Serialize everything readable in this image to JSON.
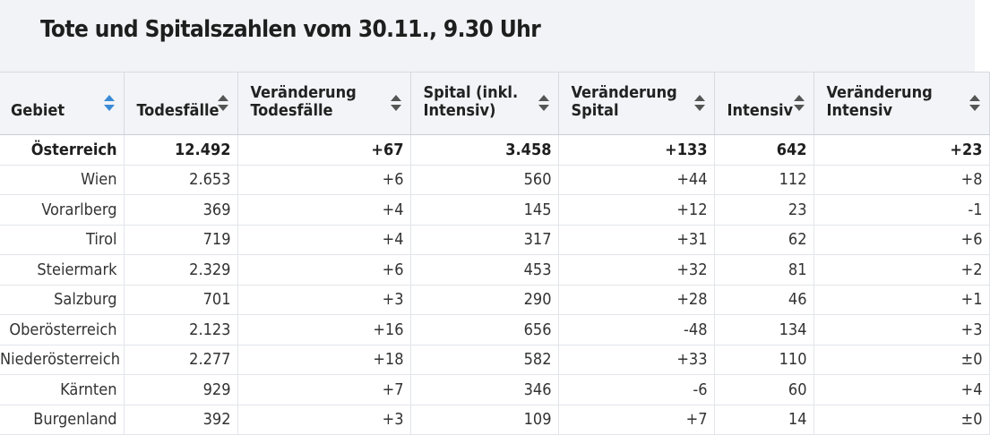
{
  "title": "Tote und Spitalszahlen vom 30.11., 9.30 Uhr",
  "columns": [
    {
      "line1": "Gebiet",
      "line2": ""
    },
    {
      "line1": "Todesfälle",
      "line2": ""
    },
    {
      "line1": "Veränderung",
      "line2": "Todesfälle"
    },
    {
      "line1": "Spital (inkl.",
      "line2": "Intensiv)"
    },
    {
      "line1": "Veränderung",
      "line2": "Spital"
    },
    {
      "line1": "Intensiv",
      "line2": ""
    },
    {
      "line1": "Veränderung",
      "line2": "Intensiv"
    }
  ],
  "sorted_column": "Gebiet",
  "rows": [
    [
      "Österreich",
      "12.492",
      "+67",
      "3.458",
      "+133",
      "642",
      "+23"
    ],
    [
      "Wien",
      "2.653",
      "+6",
      "560",
      "+44",
      "112",
      "+8"
    ],
    [
      "Vorarlberg",
      "369",
      "+4",
      "145",
      "+12",
      "23",
      "-1"
    ],
    [
      "Tirol",
      "719",
      "+4",
      "317",
      "+31",
      "62",
      "+6"
    ],
    [
      "Steiermark",
      "2.329",
      "+6",
      "453",
      "+32",
      "81",
      "+2"
    ],
    [
      "Salzburg",
      "701",
      "+3",
      "290",
      "+28",
      "46",
      "+1"
    ],
    [
      "Oberösterreich",
      "2.123",
      "+16",
      "656",
      "-48",
      "134",
      "+3"
    ],
    [
      "Niederösterreich",
      "2.277",
      "+18",
      "582",
      "+33",
      "110",
      "±0"
    ],
    [
      "Kärnten",
      "929",
      "+7",
      "346",
      "-6",
      "60",
      "+4"
    ],
    [
      "Burgenland",
      "392",
      "+3",
      "109",
      "+7",
      "14",
      "±0"
    ]
  ],
  "colors": {
    "header_bg": "#f2f4f7",
    "sort_active": "#3a8bd6",
    "sort_inactive": "#555555"
  }
}
